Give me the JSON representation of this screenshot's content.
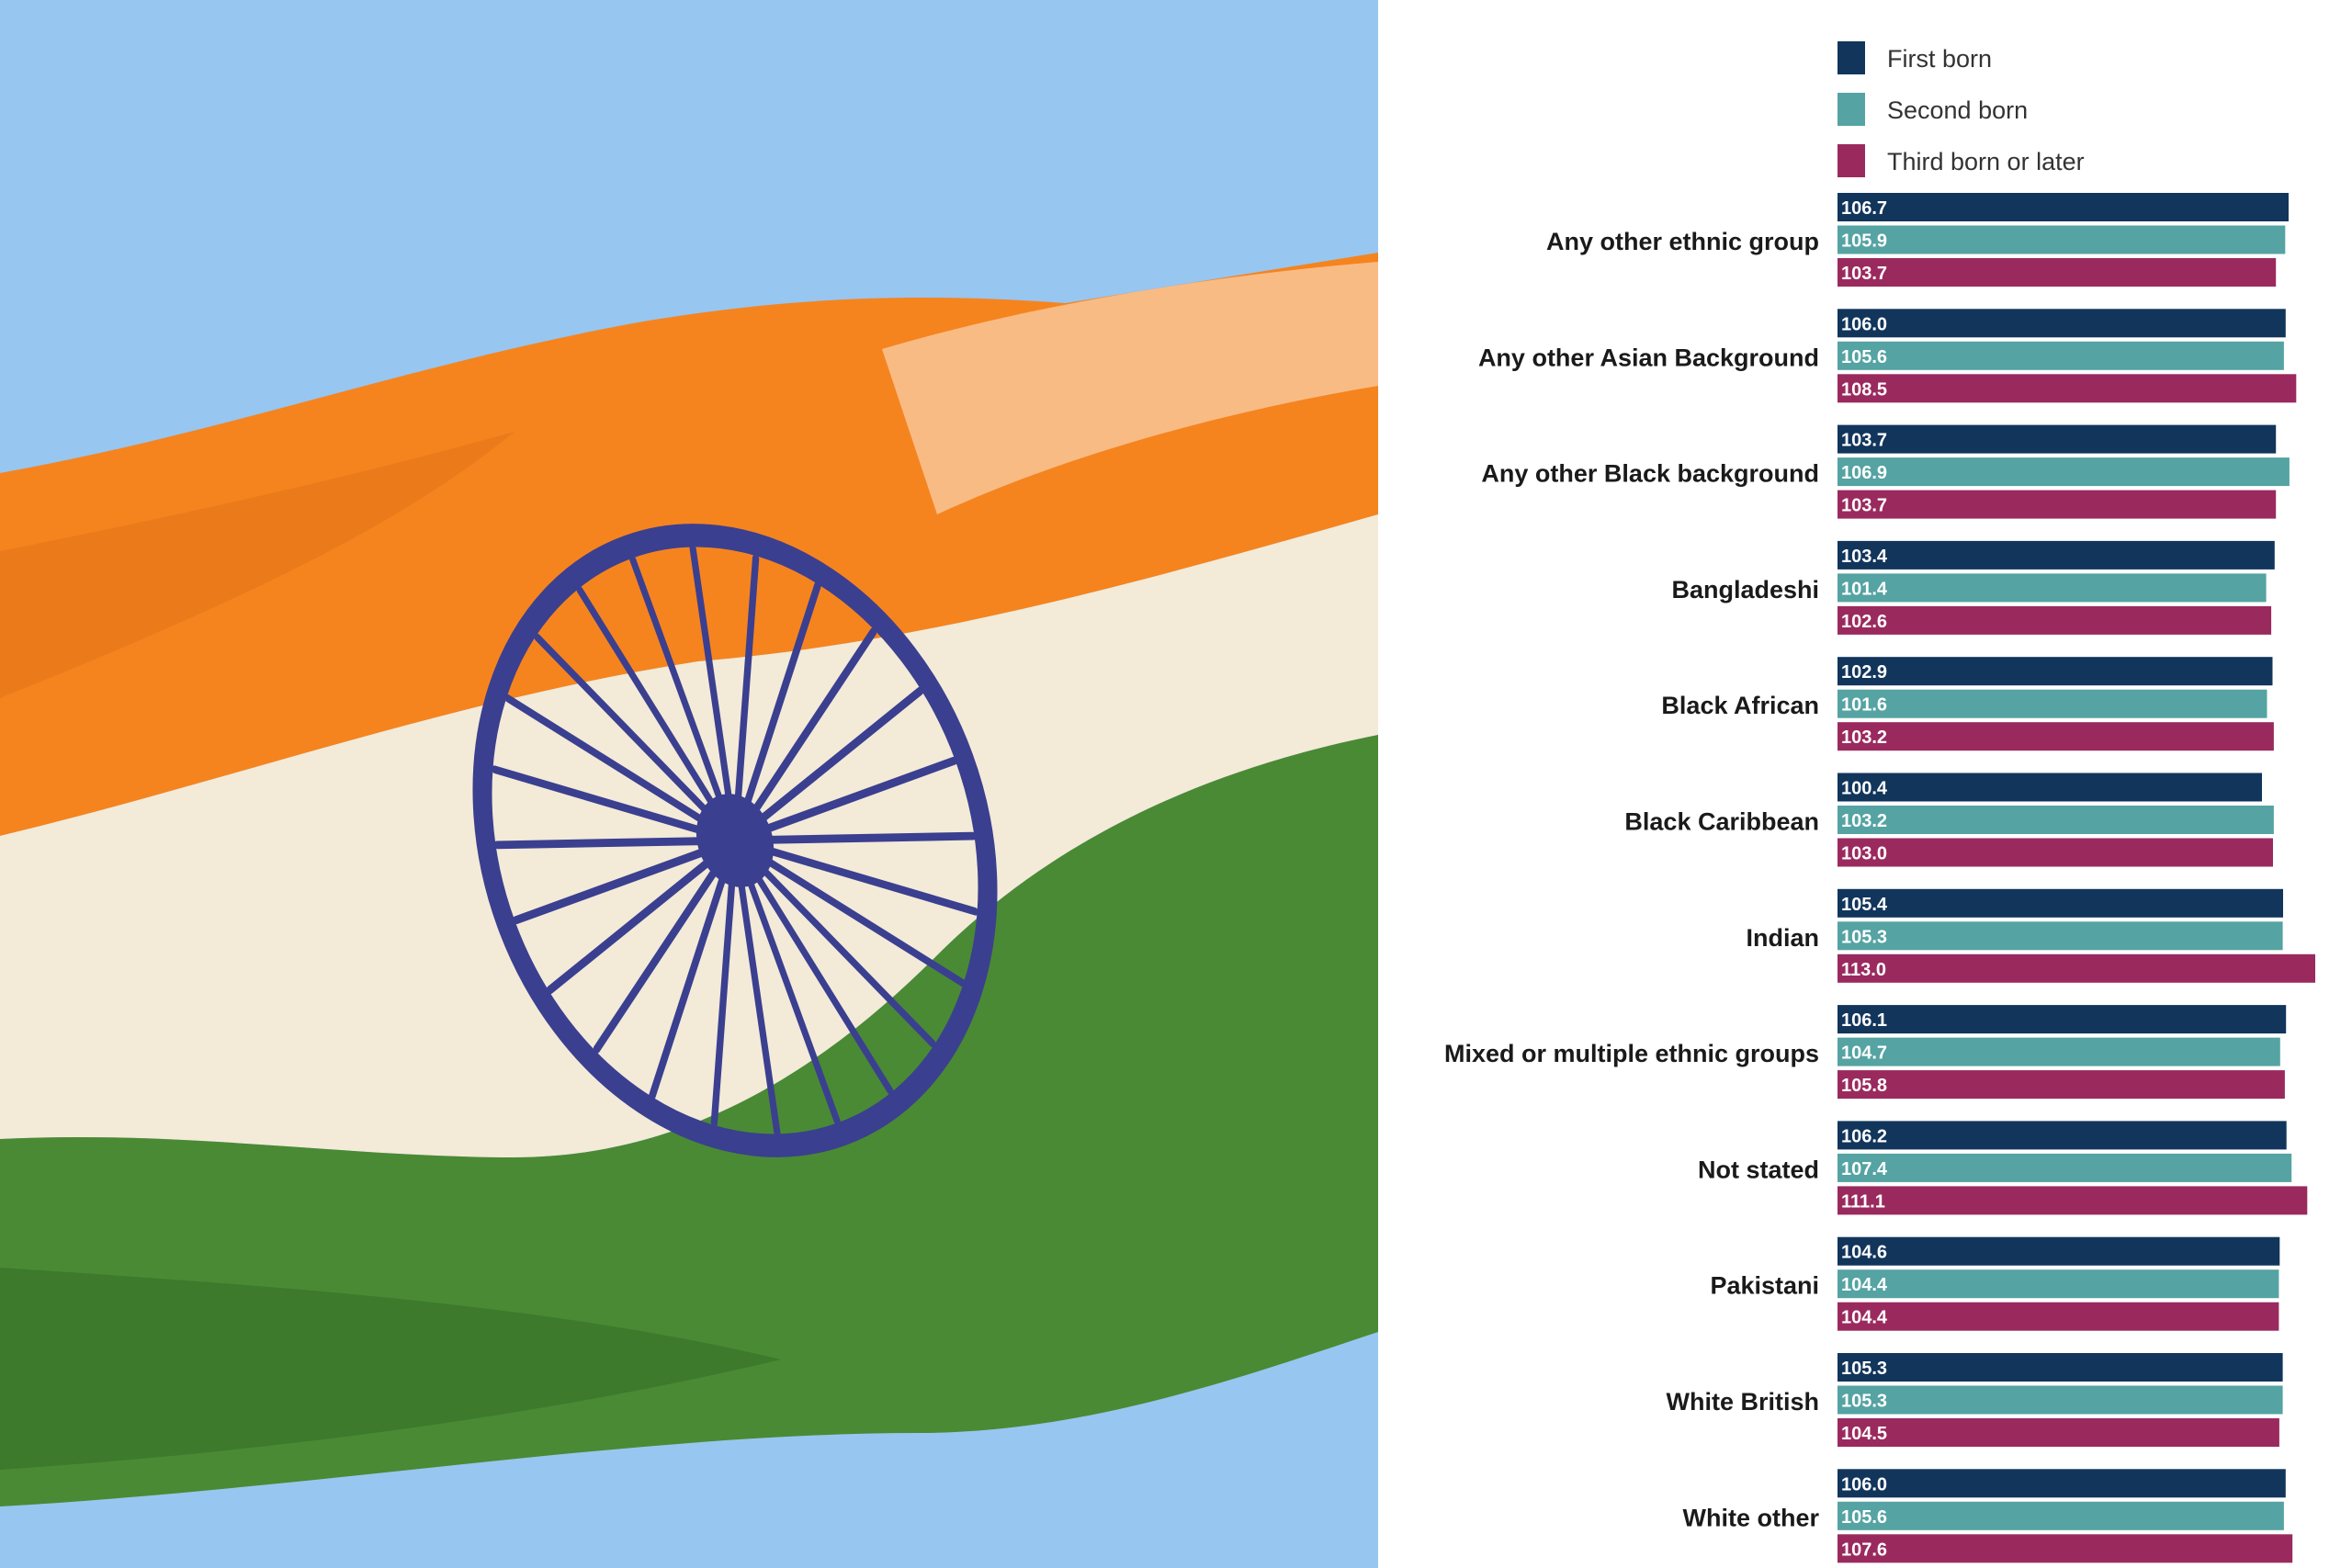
{
  "photo": {
    "subject_icon": "india-flag-icon",
    "colors": {
      "sky": "#97c6f1",
      "saffron": "#f5841f",
      "white": "#f3ead8",
      "green": "#4a8a34",
      "chakra": "#3b3f8f"
    }
  },
  "chart_data": {
    "type": "bar",
    "orientation": "horizontal",
    "categories": [
      "Any other ethnic group",
      "Any other Asian Background",
      "Any other Black background",
      "Bangladeshi",
      "Black African",
      "Black Caribbean",
      "Indian",
      "Mixed or multiple ethnic groups",
      "Not stated",
      "Pakistani",
      "White British",
      "White other"
    ],
    "series": [
      {
        "name": "First born",
        "color": "#12355b",
        "values": [
          106.7,
          106.0,
          103.7,
          103.4,
          102.9,
          100.4,
          105.4,
          106.1,
          106.2,
          104.6,
          105.3,
          106.0
        ],
        "labels": [
          "106.7",
          "106.0",
          "103.7",
          "103.4",
          "102.9",
          "100.4",
          "105.4",
          "106.1",
          "106.2",
          "104.6",
          "105.3",
          "106.0"
        ]
      },
      {
        "name": "Second born",
        "color": "#55a3a3",
        "values": [
          105.9,
          105.6,
          106.9,
          101.4,
          101.6,
          103.2,
          105.3,
          104.7,
          107.4,
          104.4,
          105.3,
          105.6
        ],
        "labels": [
          "105.9",
          "105.6",
          "106.9",
          "101.4",
          "101.6",
          "103.2",
          "105.3",
          "104.7",
          "107.4",
          "104.4",
          "105.3",
          "105.6"
        ]
      },
      {
        "name": "Third born or later",
        "color": "#9a2a5e",
        "values": [
          103.7,
          108.5,
          103.7,
          102.6,
          103.2,
          103.0,
          113.0,
          105.8,
          111.1,
          104.4,
          104.5,
          107.6
        ],
        "labels": [
          "103.7",
          "108.5",
          "103.7",
          "102.6",
          "103.2",
          "103.0",
          "113.0",
          "105.8",
          "111.1",
          "104.4",
          "104.5",
          "107.6"
        ]
      }
    ],
    "legend": "top",
    "xlim": [
      0,
      113
    ],
    "grid": false,
    "title": "",
    "xlabel": "",
    "ylabel": ""
  }
}
